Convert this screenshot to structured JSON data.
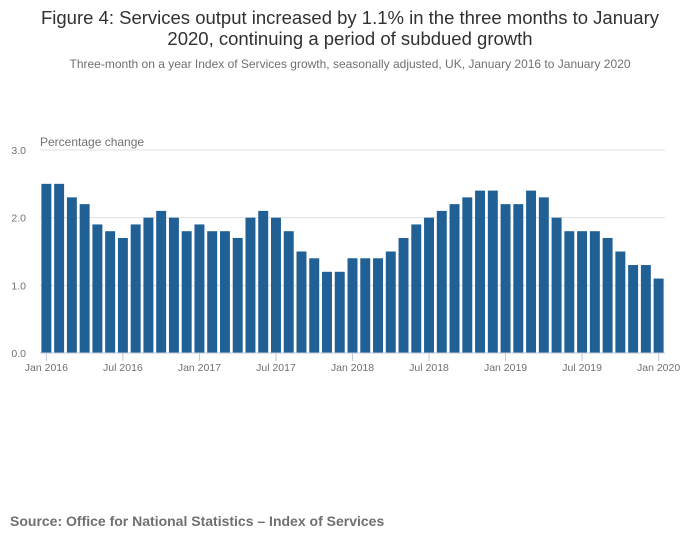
{
  "chart_data": {
    "type": "bar",
    "title": "Figure 4: Services output increased by 1.1% in the three months to January 2020, continuing a period of subdued growth",
    "title_lines": [
      "Figure 4: Services output increased by 1.1% in the three months to January",
      "2020, continuing a period of subdued growth"
    ],
    "subtitle": "Three-month on a year Index of Services growth, seasonally adjusted, UK, January 2016 to January 2020",
    "xlabel": "",
    "ylabel": "Percentage change",
    "ylim": [
      0,
      3
    ],
    "yticks": [
      "0.0",
      "1.0",
      "2.0",
      "3.0"
    ],
    "grid": true,
    "bar_color": "#206095",
    "categories": [
      "Jan 2016",
      "Feb 2016",
      "Mar 2016",
      "Apr 2016",
      "May 2016",
      "Jun 2016",
      "Jul 2016",
      "Aug 2016",
      "Sep 2016",
      "Oct 2016",
      "Nov 2016",
      "Dec 2016",
      "Jan 2017",
      "Feb 2017",
      "Mar 2017",
      "Apr 2017",
      "May 2017",
      "Jun 2017",
      "Jul 2017",
      "Aug 2017",
      "Sep 2017",
      "Oct 2017",
      "Nov 2017",
      "Dec 2017",
      "Jan 2018",
      "Feb 2018",
      "Mar 2018",
      "Apr 2018",
      "May 2018",
      "Jun 2018",
      "Jul 2018",
      "Aug 2018",
      "Sep 2018",
      "Oct 2018",
      "Nov 2018",
      "Dec 2018",
      "Jan 2019",
      "Feb 2019",
      "Mar 2019",
      "Apr 2019",
      "May 2019",
      "Jun 2019",
      "Jul 2019",
      "Aug 2019",
      "Sep 2019",
      "Oct 2019",
      "Nov 2019",
      "Dec 2019",
      "Jan 2020"
    ],
    "values": [
      2.5,
      2.5,
      2.3,
      2.2,
      1.9,
      1.8,
      1.7,
      1.9,
      2.0,
      2.1,
      2.0,
      1.8,
      1.9,
      1.8,
      1.8,
      1.7,
      2.0,
      2.1,
      2.0,
      1.8,
      1.5,
      1.4,
      1.2,
      1.2,
      1.4,
      1.4,
      1.4,
      1.5,
      1.7,
      1.9,
      2.0,
      2.1,
      2.2,
      2.3,
      2.4,
      2.4,
      2.2,
      2.2,
      2.4,
      2.3,
      2.0,
      1.8,
      1.8,
      1.8,
      1.7,
      1.5,
      1.3,
      1.3,
      1.1
    ],
    "xtick_labels": [
      {
        "index": 0,
        "label": "Jan 2016"
      },
      {
        "index": 6,
        "label": "Jul 2016"
      },
      {
        "index": 12,
        "label": "Jan 2017"
      },
      {
        "index": 18,
        "label": "Jul 2017"
      },
      {
        "index": 24,
        "label": "Jan 2018"
      },
      {
        "index": 30,
        "label": "Jul 2018"
      },
      {
        "index": 36,
        "label": "Jan 2019"
      },
      {
        "index": 42,
        "label": "Jul 2019"
      },
      {
        "index": 48,
        "label": "Jan 2020"
      }
    ]
  },
  "source": "Source: Office for National Statistics – Index of Services"
}
